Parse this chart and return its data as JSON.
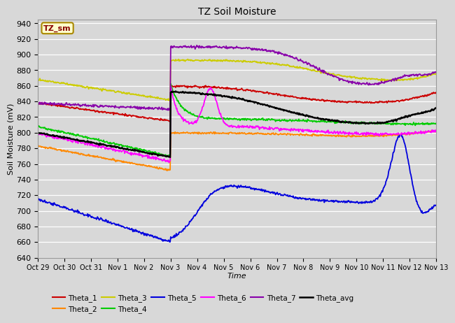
{
  "title": "TZ Soil Moisture",
  "ylabel": "Soil Moisture (mV)",
  "xlabel": "Time",
  "label_box": "TZ_sm",
  "ylim": [
    640,
    945
  ],
  "yticks": [
    640,
    660,
    680,
    700,
    720,
    740,
    760,
    780,
    800,
    820,
    840,
    860,
    880,
    900,
    920,
    940
  ],
  "x_tick_labels": [
    "Oct 29",
    "Oct 30",
    "Oct 31",
    "Nov 1",
    "Nov 2",
    "Nov 3",
    "Nov 4",
    "Nov 5",
    "Nov 6",
    "Nov 7",
    "Nov 8",
    "Nov 9",
    "Nov 10",
    "Nov 11",
    "Nov 12",
    "Nov 13"
  ],
  "background_color": "#d8d8d8",
  "plot_bg": "#d8d8d8",
  "colors": {
    "Theta_1": "#cc0000",
    "Theta_2": "#ff8800",
    "Theta_3": "#cccc00",
    "Theta_4": "#00cc00",
    "Theta_5": "#0000dd",
    "Theta_6": "#ff00ff",
    "Theta_7": "#8800aa",
    "Theta_avg": "#000000"
  },
  "n_days": 15,
  "pts_per_day": 48
}
